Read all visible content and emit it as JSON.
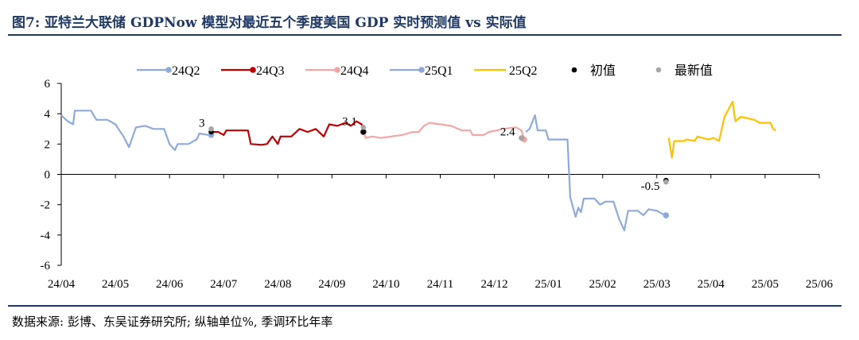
{
  "title": "图7: 亚特兰大联储 GDPNow 模型对最近五个季度美国 GDP 实时预测值 vs 实际值",
  "source": "数据来源: 彭博、东吴证券研究所; 纵轴单位%, 季调环比年率",
  "chart_data": {
    "type": "line",
    "ylim": [
      -6,
      6
    ],
    "yticks": [
      -6,
      -4,
      -2,
      0,
      2,
      4,
      6
    ],
    "xticks": [
      "24/04",
      "24/05",
      "24/06",
      "24/07",
      "24/08",
      "24/09",
      "24/10",
      "24/11",
      "24/12",
      "25/01",
      "25/02",
      "25/03",
      "25/04",
      "25/05",
      "25/06"
    ],
    "legend_position": "top",
    "series": [
      {
        "name": "24Q2",
        "color": "#8eaadb",
        "points": [
          [
            0.0,
            3.9
          ],
          [
            0.12,
            3.5
          ],
          [
            0.22,
            3.3
          ],
          [
            0.25,
            4.2
          ],
          [
            0.55,
            4.2
          ],
          [
            0.65,
            3.6
          ],
          [
            0.85,
            3.6
          ],
          [
            0.9,
            3.5
          ],
          [
            1.0,
            3.3
          ],
          [
            1.15,
            2.5
          ],
          [
            1.25,
            1.8
          ],
          [
            1.32,
            2.5
          ],
          [
            1.38,
            3.1
          ],
          [
            1.55,
            3.2
          ],
          [
            1.7,
            3.0
          ],
          [
            1.9,
            3.0
          ],
          [
            2.0,
            2.0
          ],
          [
            2.1,
            1.6
          ],
          [
            2.15,
            2.0
          ],
          [
            2.35,
            2.0
          ],
          [
            2.5,
            2.3
          ],
          [
            2.55,
            2.7
          ],
          [
            2.72,
            2.6
          ],
          [
            2.77,
            2.6
          ]
        ]
      },
      {
        "name": "24Q3",
        "color": "#c00000",
        "points": [
          [
            2.77,
            2.8
          ],
          [
            2.9,
            2.8
          ],
          [
            3.0,
            2.6
          ],
          [
            3.05,
            2.9
          ],
          [
            3.45,
            2.9
          ],
          [
            3.5,
            2.0
          ],
          [
            3.7,
            1.95
          ],
          [
            3.8,
            2.0
          ],
          [
            3.9,
            2.5
          ],
          [
            4.0,
            2.0
          ],
          [
            4.05,
            2.5
          ],
          [
            4.25,
            2.5
          ],
          [
            4.4,
            3.0
          ],
          [
            4.55,
            2.8
          ],
          [
            4.7,
            3.0
          ],
          [
            4.85,
            2.5
          ],
          [
            4.95,
            3.3
          ],
          [
            5.1,
            3.2
          ],
          [
            5.25,
            3.4
          ],
          [
            5.35,
            3.2
          ],
          [
            5.45,
            3.5
          ],
          [
            5.55,
            3.3
          ],
          [
            5.58,
            2.8
          ]
        ]
      },
      {
        "name": "24Q4",
        "color": "#f4a6a6",
        "points": [
          [
            5.58,
            3.1
          ],
          [
            5.62,
            2.4
          ],
          [
            5.75,
            2.5
          ],
          [
            5.9,
            2.4
          ],
          [
            6.3,
            2.6
          ],
          [
            6.5,
            2.8
          ],
          [
            6.6,
            2.8
          ],
          [
            6.7,
            3.2
          ],
          [
            6.8,
            3.4
          ],
          [
            7.0,
            3.3
          ],
          [
            7.2,
            3.2
          ],
          [
            7.4,
            2.9
          ],
          [
            7.55,
            2.9
          ],
          [
            7.6,
            2.6
          ],
          [
            7.8,
            2.6
          ],
          [
            7.9,
            2.8
          ],
          [
            8.05,
            2.9
          ],
          [
            8.15,
            3.0
          ],
          [
            8.4,
            3.1
          ],
          [
            8.5,
            2.9
          ],
          [
            8.55,
            2.3
          ]
        ]
      },
      {
        "name": "25Q1",
        "color": "#8eaadb",
        "points": [
          [
            8.58,
            2.8
          ],
          [
            8.65,
            3.0
          ],
          [
            8.75,
            3.9
          ],
          [
            8.8,
            2.9
          ],
          [
            8.95,
            2.9
          ],
          [
            9.0,
            2.3
          ],
          [
            9.35,
            2.3
          ],
          [
            9.4,
            -1.5
          ],
          [
            9.5,
            -2.8
          ],
          [
            9.55,
            -2.2
          ],
          [
            9.6,
            -2.5
          ],
          [
            9.65,
            -1.6
          ],
          [
            9.85,
            -1.6
          ],
          [
            9.95,
            -2.0
          ],
          [
            10.05,
            -1.8
          ],
          [
            10.2,
            -1.8
          ],
          [
            10.3,
            -2.9
          ],
          [
            10.4,
            -3.7
          ],
          [
            10.47,
            -2.4
          ],
          [
            10.65,
            -2.4
          ],
          [
            10.75,
            -2.7
          ],
          [
            10.85,
            -2.3
          ],
          [
            11.0,
            -2.4
          ],
          [
            11.1,
            -2.6
          ],
          [
            11.17,
            -2.7
          ]
        ]
      },
      {
        "name": "25Q2",
        "color": "#ffc000",
        "points": [
          [
            11.22,
            2.4
          ],
          [
            11.28,
            1.1
          ],
          [
            11.32,
            2.2
          ],
          [
            11.5,
            2.2
          ],
          [
            11.55,
            2.3
          ],
          [
            11.7,
            2.2
          ],
          [
            11.75,
            2.5
          ],
          [
            11.95,
            2.3
          ],
          [
            12.05,
            2.4
          ],
          [
            12.15,
            2.2
          ],
          [
            12.25,
            3.8
          ],
          [
            12.4,
            4.8
          ],
          [
            12.45,
            3.5
          ],
          [
            12.55,
            3.8
          ],
          [
            12.8,
            3.6
          ],
          [
            12.9,
            3.4
          ],
          [
            13.1,
            3.4
          ],
          [
            13.15,
            3.0
          ],
          [
            13.2,
            2.9
          ]
        ]
      }
    ],
    "legend_markers": [
      {
        "name": "初值",
        "color": "#000000"
      },
      {
        "name": "最新值",
        "color": "#a6a6a6"
      }
    ],
    "initial_values": [
      [
        2.77,
        2.8
      ],
      [
        5.58,
        2.8
      ],
      [
        8.5,
        2.4
      ],
      [
        11.17,
        -0.4
      ]
    ],
    "latest_values": [
      [
        2.77,
        3.0
      ],
      [
        5.58,
        3.1
      ],
      [
        8.5,
        2.4
      ],
      [
        11.17,
        -0.5
      ]
    ],
    "annotations": [
      {
        "text": "3",
        "x": 2.77,
        "y": 3.0
      },
      {
        "text": "3.1",
        "x": 5.58,
        "y": 3.1
      },
      {
        "text": "2.4",
        "x": 8.5,
        "y": 2.4
      },
      {
        "text": "-0.5",
        "x": 11.17,
        "y": -0.5
      }
    ]
  }
}
